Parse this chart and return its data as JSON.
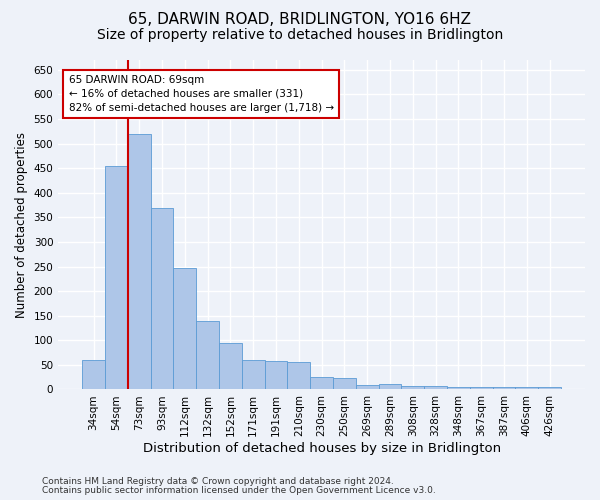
{
  "title": "65, DARWIN ROAD, BRIDLINGTON, YO16 6HZ",
  "subtitle": "Size of property relative to detached houses in Bridlington",
  "xlabel": "Distribution of detached houses by size in Bridlington",
  "ylabel": "Number of detached properties",
  "footnote1": "Contains HM Land Registry data © Crown copyright and database right 2024.",
  "footnote2": "Contains public sector information licensed under the Open Government Licence v3.0.",
  "annotation_title": "65 DARWIN ROAD: 69sqm",
  "annotation_line1": "← 16% of detached houses are smaller (331)",
  "annotation_line2": "82% of semi-detached houses are larger (1,718) →",
  "bar_color": "#aec6e8",
  "bar_edge_color": "#5b9bd5",
  "red_line_color": "#cc0000",
  "annotation_box_color": "#cc0000",
  "categories": [
    "34sqm",
    "54sqm",
    "73sqm",
    "93sqm",
    "112sqm",
    "132sqm",
    "152sqm",
    "171sqm",
    "191sqm",
    "210sqm",
    "230sqm",
    "250sqm",
    "269sqm",
    "289sqm",
    "308sqm",
    "328sqm",
    "348sqm",
    "367sqm",
    "387sqm",
    "406sqm",
    "426sqm"
  ],
  "values": [
    60,
    455,
    520,
    370,
    248,
    140,
    95,
    60,
    57,
    55,
    25,
    23,
    10,
    12,
    8,
    7,
    6,
    5,
    5,
    4,
    4
  ],
  "red_line_bin": 2,
  "ylim": [
    0,
    670
  ],
  "yticks": [
    0,
    50,
    100,
    150,
    200,
    250,
    300,
    350,
    400,
    450,
    500,
    550,
    600,
    650
  ],
  "background_color": "#eef2f9",
  "plot_bg_color": "#eef2f9",
  "grid_color": "#ffffff",
  "title_fontsize": 11,
  "subtitle_fontsize": 10,
  "xlabel_fontsize": 9.5,
  "ylabel_fontsize": 8.5,
  "tick_fontsize": 7.5,
  "annotation_fontsize": 7.5,
  "footnote_fontsize": 6.5
}
